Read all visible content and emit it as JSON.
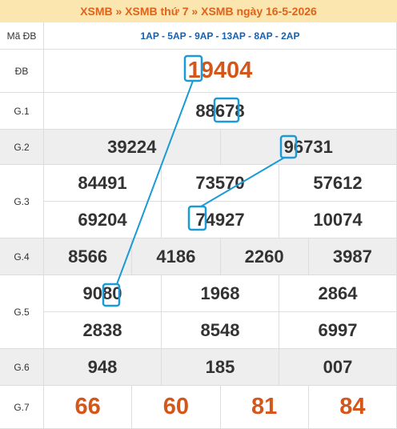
{
  "header": {
    "title": "XSMB » XSMB thứ 7 » XSMB ngày 16-5-2026"
  },
  "code": {
    "label": "Mã ĐB",
    "value": "1AP - 5AP - 9AP - 13AP - 8AP - 2AP"
  },
  "prizes": [
    {
      "label": "ĐB",
      "rows": [
        [
          "19404"
        ]
      ]
    },
    {
      "label": "G.1",
      "rows": [
        [
          "88678"
        ]
      ]
    },
    {
      "label": "G.2",
      "rows": [
        [
          "39224",
          "96731"
        ]
      ]
    },
    {
      "label": "G.3",
      "rows": [
        [
          "84491",
          "73570",
          "57612"
        ],
        [
          "69204",
          "74927",
          "10074"
        ]
      ]
    },
    {
      "label": "G.4",
      "rows": [
        [
          "8566",
          "4186",
          "2260",
          "3987"
        ]
      ]
    },
    {
      "label": "G.5",
      "rows": [
        [
          "9080",
          "1968",
          "2864"
        ],
        [
          "2838",
          "8548",
          "6997"
        ]
      ]
    },
    {
      "label": "G.6",
      "rows": [
        [
          "948",
          "185",
          "007"
        ]
      ]
    },
    {
      "label": "G.7",
      "rows": [
        [
          "66",
          "60",
          "81",
          "84"
        ]
      ]
    }
  ]
}
